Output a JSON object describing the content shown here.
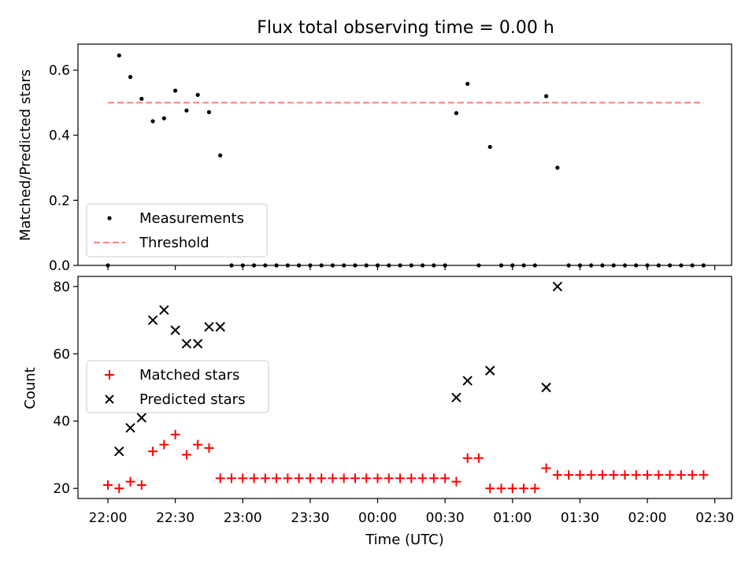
{
  "figure": {
    "title": "Flux total observing time = 0.00 h"
  },
  "chart_data": [
    {
      "type": "scatter",
      "ylabel": "Matched/Predicted stars",
      "ylim": [
        0.0,
        0.68
      ],
      "yticks": [
        "0.0",
        "0.2",
        "0.4",
        "0.6"
      ],
      "legend": {
        "placement": "lower-left",
        "entries": [
          "Measurements",
          "Threshold"
        ]
      },
      "series": [
        {
          "name": "Measurements",
          "marker": "dot",
          "color": "#000000",
          "x": [
            "22:00",
            "22:05",
            "22:10",
            "22:15",
            "22:20",
            "22:25",
            "22:30",
            "22:35",
            "22:40",
            "22:45",
            "22:50",
            "22:55",
            "23:00",
            "23:05",
            "23:10",
            "23:15",
            "23:20",
            "23:25",
            "23:30",
            "23:35",
            "23:40",
            "23:45",
            "23:50",
            "23:55",
            "00:00",
            "00:05",
            "00:10",
            "00:15",
            "00:20",
            "00:25",
            "00:30",
            "00:35",
            "00:40",
            "00:45",
            "00:50",
            "00:55",
            "01:00",
            "01:05",
            "01:10",
            "01:15",
            "01:20",
            "01:25",
            "01:30",
            "01:35",
            "01:40",
            "01:45",
            "01:50",
            "01:55",
            "02:00",
            "02:05",
            "02:10",
            "02:15",
            "02:20",
            "02:25"
          ],
          "y": [
            0.0,
            0.645,
            0.579,
            0.512,
            0.443,
            0.452,
            0.537,
            0.476,
            0.524,
            0.471,
            0.338,
            0,
            0,
            0,
            0,
            0,
            0,
            0,
            0,
            0,
            0,
            0,
            0,
            0,
            0,
            0,
            0,
            0,
            0,
            0,
            0,
            0.468,
            0.558,
            0,
            0.364,
            0,
            0,
            0,
            0,
            0.52,
            0.3,
            0,
            0,
            0,
            0,
            0,
            0,
            0,
            0,
            0,
            0,
            0,
            0,
            0
          ]
        },
        {
          "name": "Threshold",
          "style": "dashed",
          "color": "#ff7f7f",
          "x": [
            "22:00",
            "02:25"
          ],
          "y": [
            0.5,
            0.5
          ]
        }
      ]
    },
    {
      "type": "scatter",
      "xlabel": "Time (UTC)",
      "ylabel": "Count",
      "ylim": [
        17,
        83
      ],
      "yticks": [
        "20",
        "40",
        "60",
        "80"
      ],
      "xticks": [
        "22:00",
        "22:30",
        "23:00",
        "23:30",
        "00:00",
        "00:30",
        "01:00",
        "01:30",
        "02:00",
        "02:30"
      ],
      "legend": {
        "placement": "center-left",
        "entries": [
          "Matched stars",
          "Predicted stars"
        ]
      },
      "series": [
        {
          "name": "Matched stars",
          "marker": "plus",
          "color": "#ff0000",
          "x": [
            "22:00",
            "22:05",
            "22:10",
            "22:15",
            "22:20",
            "22:25",
            "22:30",
            "22:35",
            "22:40",
            "22:45",
            "22:50",
            "22:55",
            "23:00",
            "23:05",
            "23:10",
            "23:15",
            "23:20",
            "23:25",
            "23:30",
            "23:35",
            "23:40",
            "23:45",
            "23:50",
            "23:55",
            "00:00",
            "00:05",
            "00:10",
            "00:15",
            "00:20",
            "00:25",
            "00:30",
            "00:35",
            "00:40",
            "00:45",
            "00:50",
            "00:55",
            "01:00",
            "01:05",
            "01:10",
            "01:15",
            "01:20",
            "01:25",
            "01:30",
            "01:35",
            "01:40",
            "01:45",
            "01:50",
            "01:55",
            "02:00",
            "02:05",
            "02:10",
            "02:15",
            "02:20",
            "02:25"
          ],
          "y": [
            21,
            20,
            22,
            21,
            31,
            33,
            36,
            30,
            33,
            32,
            23,
            23,
            23,
            23,
            23,
            23,
            23,
            23,
            23,
            23,
            23,
            23,
            23,
            23,
            23,
            23,
            23,
            23,
            23,
            23,
            23,
            22,
            29,
            29,
            20,
            20,
            20,
            20,
            20,
            26,
            24,
            24,
            24,
            24,
            24,
            24,
            24,
            24,
            24,
            24,
            24,
            24,
            24,
            24
          ]
        },
        {
          "name": "Predicted stars",
          "marker": "x",
          "color": "#000000",
          "x": [
            "22:05",
            "22:10",
            "22:15",
            "22:20",
            "22:25",
            "22:30",
            "22:35",
            "22:40",
            "22:45",
            "22:50",
            "00:35",
            "00:40",
            "00:50",
            "01:15",
            "01:20"
          ],
          "y": [
            31,
            38,
            41,
            70,
            73,
            67,
            63,
            63,
            68,
            68,
            47,
            52,
            55,
            50,
            80
          ]
        }
      ]
    }
  ]
}
